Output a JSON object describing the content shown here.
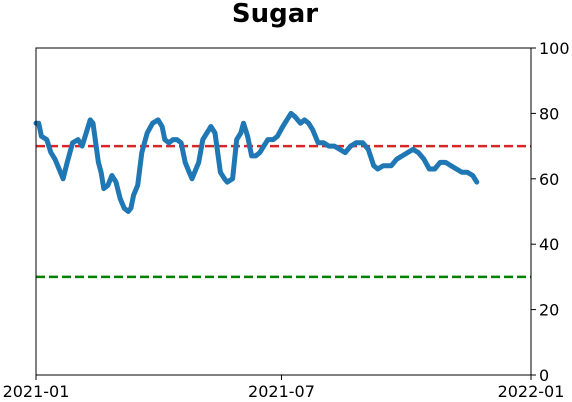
{
  "chart_data": {
    "type": "line",
    "title": "Sugar",
    "xlabel": "",
    "ylabel": "",
    "xlim": [
      "2021-01-01",
      "2022-01-01"
    ],
    "ylim": [
      0,
      100
    ],
    "x_ticks": [
      {
        "date": "2021-01-01",
        "label": "2021-01"
      },
      {
        "date": "2021-07-01",
        "label": "2021-07"
      },
      {
        "date": "2022-01-01",
        "label": "2022-01"
      }
    ],
    "y_ticks": [
      0,
      20,
      40,
      60,
      80,
      100
    ],
    "y_axis_side": "right",
    "grid": false,
    "reference_lines": [
      {
        "y": 70,
        "color": "#d62728",
        "style": "dashed"
      },
      {
        "y": 30,
        "color": "#008000",
        "style": "dashed"
      }
    ],
    "series": [
      {
        "color": "#1f77b4",
        "points": [
          [
            "2021-01-01",
            77
          ],
          [
            "2021-01-03",
            77
          ],
          [
            "2021-01-05",
            73
          ],
          [
            "2021-01-09",
            72
          ],
          [
            "2021-01-12",
            68
          ],
          [
            "2021-01-15",
            66
          ],
          [
            "2021-01-18",
            63
          ],
          [
            "2021-01-21",
            60
          ],
          [
            "2021-01-24",
            65
          ],
          [
            "2021-01-28",
            71
          ],
          [
            "2021-02-01",
            72
          ],
          [
            "2021-02-04",
            70
          ],
          [
            "2021-02-07",
            74
          ],
          [
            "2021-02-10",
            78
          ],
          [
            "2021-02-12",
            77
          ],
          [
            "2021-02-16",
            65
          ],
          [
            "2021-02-18",
            62
          ],
          [
            "2021-02-20",
            57
          ],
          [
            "2021-02-23",
            58
          ],
          [
            "2021-02-26",
            61
          ],
          [
            "2021-03-01",
            59
          ],
          [
            "2021-03-04",
            54
          ],
          [
            "2021-03-07",
            51
          ],
          [
            "2021-03-10",
            50
          ],
          [
            "2021-03-12",
            51
          ],
          [
            "2021-03-14",
            55
          ],
          [
            "2021-03-17",
            58
          ],
          [
            "2021-03-20",
            68
          ],
          [
            "2021-03-24",
            74
          ],
          [
            "2021-03-28",
            77
          ],
          [
            "2021-04-01",
            78
          ],
          [
            "2021-04-04",
            76
          ],
          [
            "2021-04-06",
            72
          ],
          [
            "2021-04-09",
            71
          ],
          [
            "2021-04-12",
            72
          ],
          [
            "2021-04-15",
            72
          ],
          [
            "2021-04-18",
            71
          ],
          [
            "2021-04-21",
            65
          ],
          [
            "2021-04-24",
            62
          ],
          [
            "2021-04-26",
            60
          ],
          [
            "2021-04-29",
            63
          ],
          [
            "2021-05-01",
            65
          ],
          [
            "2021-05-04",
            72
          ],
          [
            "2021-05-07",
            74
          ],
          [
            "2021-05-10",
            76
          ],
          [
            "2021-05-13",
            74
          ],
          [
            "2021-05-17",
            62
          ],
          [
            "2021-05-20",
            60
          ],
          [
            "2021-05-22",
            59
          ],
          [
            "2021-05-26",
            60
          ],
          [
            "2021-05-29",
            72
          ],
          [
            "2021-06-01",
            74
          ],
          [
            "2021-06-03",
            77
          ],
          [
            "2021-06-06",
            73
          ],
          [
            "2021-06-09",
            67
          ],
          [
            "2021-06-12",
            67
          ],
          [
            "2021-06-15",
            68
          ],
          [
            "2021-06-18",
            70
          ],
          [
            "2021-06-21",
            72
          ],
          [
            "2021-06-25",
            72
          ],
          [
            "2021-06-28",
            73
          ],
          [
            "2021-07-02",
            76
          ],
          [
            "2021-07-05",
            78
          ],
          [
            "2021-07-08",
            80
          ],
          [
            "2021-07-11",
            79
          ],
          [
            "2021-07-15",
            77
          ],
          [
            "2021-07-18",
            78
          ],
          [
            "2021-07-21",
            77
          ],
          [
            "2021-07-24",
            75
          ],
          [
            "2021-07-28",
            71
          ],
          [
            "2021-08-01",
            71
          ],
          [
            "2021-08-05",
            70
          ],
          [
            "2021-08-09",
            70
          ],
          [
            "2021-08-13",
            69
          ],
          [
            "2021-08-17",
            68
          ],
          [
            "2021-08-21",
            70
          ],
          [
            "2021-08-25",
            71
          ],
          [
            "2021-08-30",
            71
          ],
          [
            "2021-09-03",
            69
          ],
          [
            "2021-09-07",
            64
          ],
          [
            "2021-09-10",
            63
          ],
          [
            "2021-09-14",
            64
          ],
          [
            "2021-09-20",
            64
          ],
          [
            "2021-09-24",
            66
          ],
          [
            "2021-09-28",
            67
          ],
          [
            "2021-10-02",
            68
          ],
          [
            "2021-10-06",
            69
          ],
          [
            "2021-10-10",
            68
          ],
          [
            "2021-10-14",
            66
          ],
          [
            "2021-10-18",
            63
          ],
          [
            "2021-10-22",
            63
          ],
          [
            "2021-10-26",
            65
          ],
          [
            "2021-10-30",
            65
          ],
          [
            "2021-11-03",
            64
          ],
          [
            "2021-11-07",
            63
          ],
          [
            "2021-11-11",
            62
          ],
          [
            "2021-11-15",
            62
          ],
          [
            "2021-11-19",
            61
          ],
          [
            "2021-11-22",
            59
          ]
        ]
      }
    ]
  }
}
